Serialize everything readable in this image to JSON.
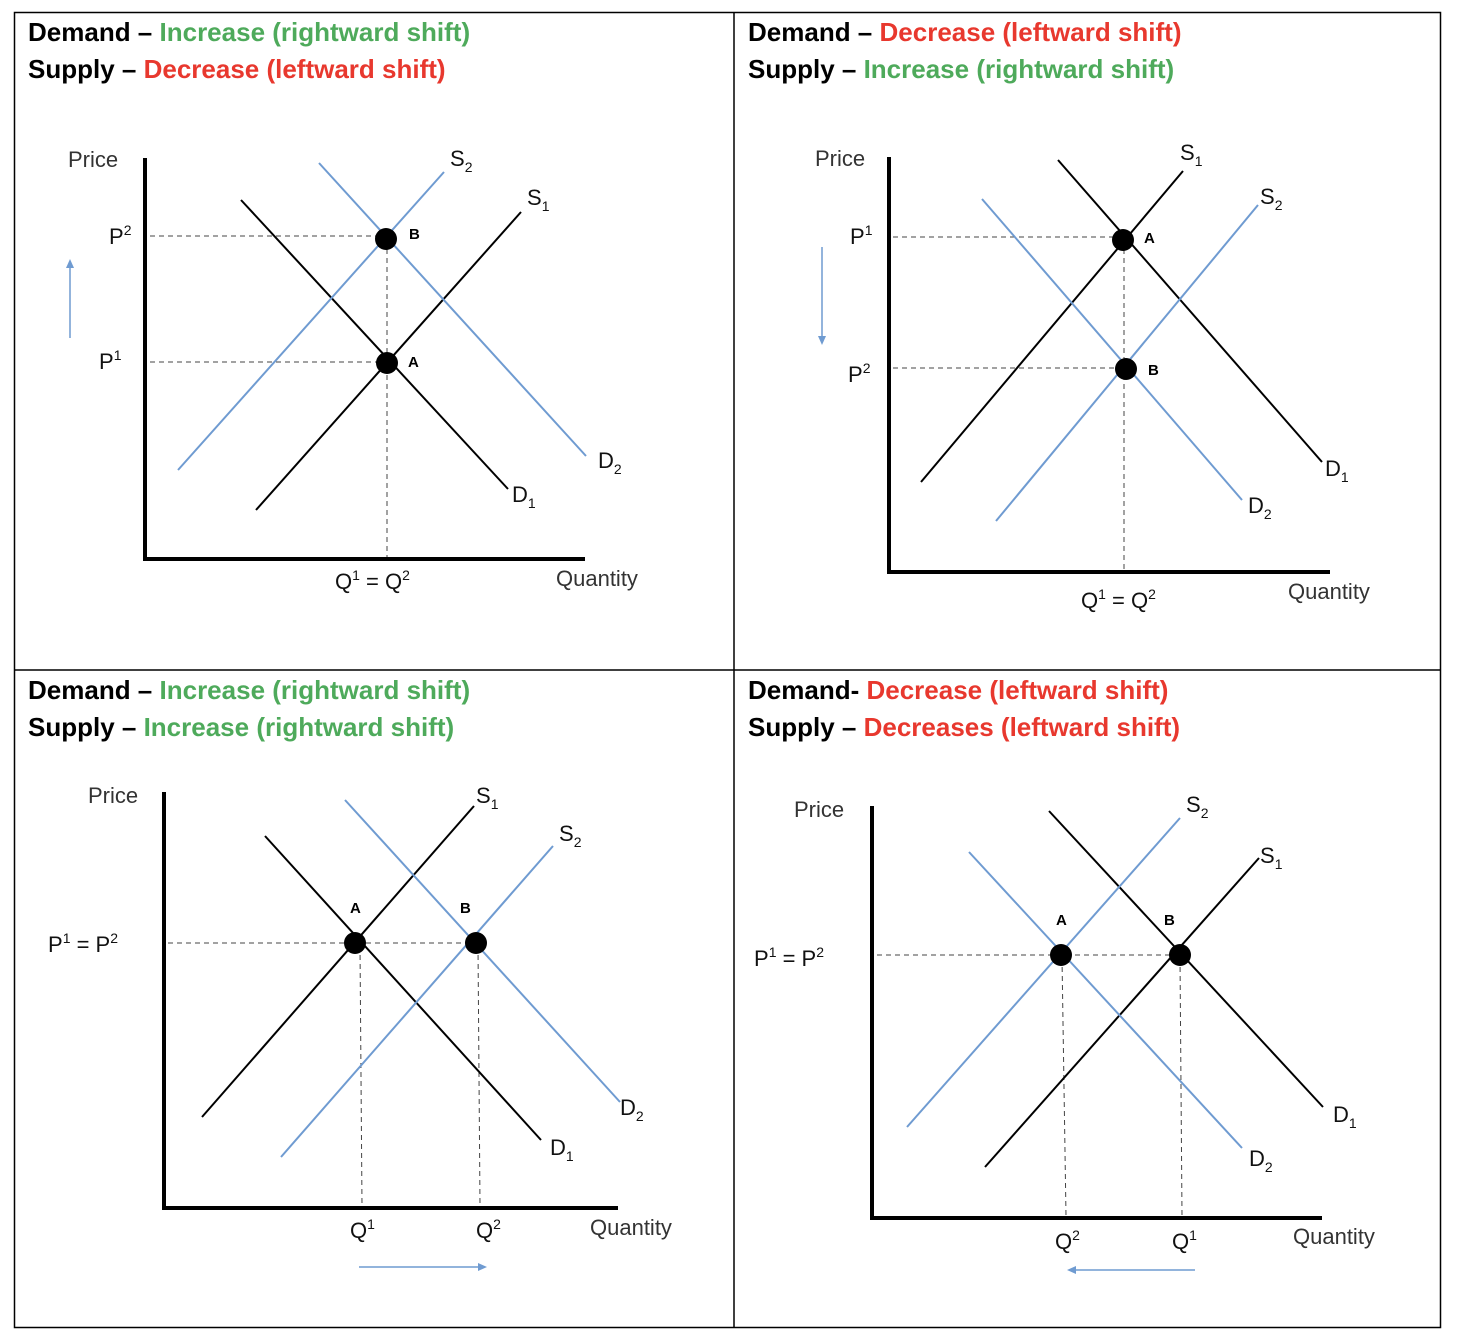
{
  "colors": {
    "black_curve": "#000000",
    "blue_curve": "#6f9bd1",
    "increase": "#4eaa5b",
    "decrease": "#e8382e",
    "arrow": "#6f9bd1"
  },
  "labels": {
    "price": "Price",
    "quantity": "Quantity",
    "S": "S",
    "D": "D",
    "P": "P",
    "Q": "Q",
    "A": "A",
    "B": "B"
  },
  "panels": [
    {
      "demand": {
        "prefix": "Demand – ",
        "change": "Increase (rightward shift)",
        "kind": "inc"
      },
      "supply": {
        "prefix": "Supply – ",
        "change": "Decrease (leftward shift)",
        "kind": "dec"
      },
      "price_labels": [
        {
          "base": "P",
          "sup": "2"
        },
        {
          "base": "P",
          "sup": "1"
        }
      ],
      "qty_label": "Q1 = Q2",
      "price_arrow": "up",
      "qty_arrow": "none"
    },
    {
      "demand": {
        "prefix": "Demand – ",
        "change": "Decrease (leftward shift)",
        "kind": "dec"
      },
      "supply": {
        "prefix": "Supply – ",
        "change": "Increase (rightward shift)",
        "kind": "inc"
      },
      "price_labels": [
        {
          "base": "P",
          "sup": "1"
        },
        {
          "base": "P",
          "sup": "2"
        }
      ],
      "qty_label": "Q1 = Q2",
      "price_arrow": "down",
      "qty_arrow": "none"
    },
    {
      "demand": {
        "prefix": "Demand – ",
        "change": "Increase (rightward shift)",
        "kind": "inc"
      },
      "supply": {
        "prefix": "Supply – ",
        "change": "Increase (rightward shift)",
        "kind": "inc"
      },
      "price_label_combined": "P1 = P2",
      "qty_labels": [
        {
          "base": "Q",
          "sup": "1"
        },
        {
          "base": "Q",
          "sup": "2"
        }
      ],
      "price_arrow": "none",
      "qty_arrow": "right"
    },
    {
      "demand": {
        "prefix": "Demand- ",
        "change": "Decrease (leftward shift)",
        "kind": "dec"
      },
      "supply": {
        "prefix": "Supply – ",
        "change": "Decreases (leftward shift)",
        "kind": "dec"
      },
      "price_label_combined": "P1 = P2",
      "qty_labels": [
        {
          "base": "Q",
          "sup": "2"
        },
        {
          "base": "Q",
          "sup": "1"
        }
      ],
      "price_arrow": "none",
      "qty_arrow": "left"
    }
  ]
}
